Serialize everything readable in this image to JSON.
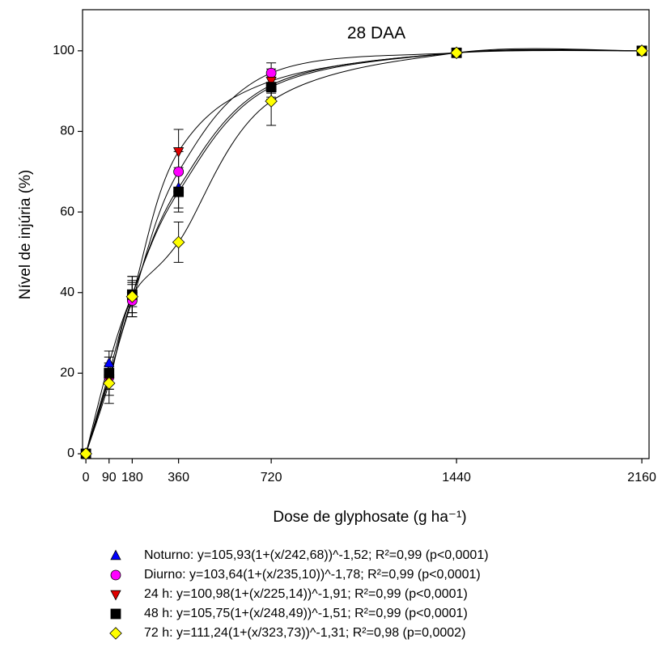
{
  "chart_data": {
    "type": "scatter",
    "title": "28 DAA",
    "x_label": "Dose de glyphosate (g ha⁻¹)",
    "y_label": "Nível de injúria (%)",
    "x": [
      0,
      90,
      180,
      360,
      720,
      1440,
      2160
    ],
    "xlim": [
      -13,
      2188
    ],
    "ylim": [
      -1.2,
      110.2
    ],
    "xticks": [
      0,
      90,
      180,
      360,
      720,
      1440,
      2160
    ],
    "yticks": [
      0,
      20,
      40,
      60,
      80,
      100
    ],
    "grid": false,
    "fit_curves": true,
    "series": [
      {
        "name": "Noturno: y=105,93(1+(x/242,68))^-1,52; R²=0,99 (p<0,0001)",
        "color": "#0000ff",
        "marker": "triangle-up",
        "values": [
          0,
          22.5,
          39.5,
          66,
          91.5,
          99.5,
          100
        ],
        "errors": [
          0,
          3,
          3,
          5,
          3,
          0.5,
          0.5
        ]
      },
      {
        "name": "Diurno: y=103,64(1+(x/235,10))^-1,78; R²=0,99 (p<0,0001)",
        "color": "#ff00ff",
        "marker": "circle",
        "values": [
          0,
          19,
          38,
          70,
          94.5,
          99.5,
          100
        ],
        "errors": [
          0,
          3,
          4,
          5,
          2.5,
          0.5,
          0.5
        ]
      },
      {
        "name": "24 h: y=100,98(1+(x/225,14))^-1,91; R²=0,99 (p<0,0001)",
        "color": "#e00000",
        "marker": "triangle-down",
        "values": [
          0,
          18.5,
          39,
          75,
          92.5,
          99.5,
          100
        ],
        "errors": [
          0,
          4,
          5,
          5.5,
          3,
          0.5,
          0.5
        ]
      },
      {
        "name": "48 h: y=105,75(1+(x/248,49))^-1,51; R²=0,99 (p<0,0001)",
        "color": "#000000",
        "marker": "square",
        "values": [
          0,
          20,
          39.5,
          65,
          91,
          99.5,
          100
        ],
        "errors": [
          0,
          4,
          4.5,
          5,
          3,
          0.5,
          0.5
        ]
      },
      {
        "name": "72 h: y=111,24(1+(x/323,73))^-1,31; R²=0,98 (p=0,0002)",
        "color": "#ffff00",
        "marker": "diamond",
        "values": [
          0,
          17.5,
          39,
          52.5,
          87.5,
          99.5,
          100
        ],
        "errors": [
          0,
          5,
          4,
          5,
          6,
          0.5,
          0.5
        ]
      }
    ]
  }
}
